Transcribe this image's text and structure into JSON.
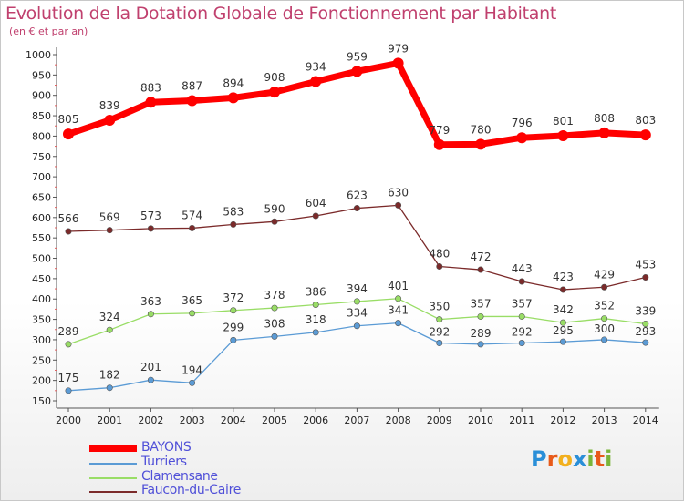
{
  "chart_data": {
    "type": "line",
    "title": "Evolution de la Dotation Globale de Fonctionnement par Habitant",
    "subtitle": "(en € et par an)",
    "x": [
      "2000",
      "2001",
      "2002",
      "2003",
      "2004",
      "2005",
      "2006",
      "2007",
      "2008",
      "2009",
      "2010",
      "2011",
      "2012",
      "2013",
      "2014"
    ],
    "ylim": [
      150,
      1000
    ],
    "yticks": [
      150,
      200,
      250,
      300,
      350,
      400,
      450,
      500,
      550,
      600,
      650,
      700,
      750,
      800,
      850,
      900,
      950,
      1000
    ],
    "grid": false,
    "legend_position": "bottom-left",
    "series": [
      {
        "name": "BAYONS",
        "color": "#ff0000",
        "values": [
          805,
          839,
          883,
          887,
          894,
          908,
          934,
          959,
          979,
          779,
          780,
          796,
          801,
          808,
          803
        ]
      },
      {
        "name": "Turriers",
        "color": "#5b9bd5",
        "values": [
          175,
          182,
          201,
          194,
          299,
          308,
          318,
          334,
          341,
          292,
          289,
          292,
          295,
          300,
          293
        ]
      },
      {
        "name": "Clamensane",
        "color": "#99dd66",
        "values": [
          289,
          324,
          363,
          365,
          372,
          378,
          386,
          394,
          401,
          350,
          357,
          357,
          342,
          352,
          339
        ]
      },
      {
        "name": "Faucon-du-Caire",
        "color": "#7b2a2a",
        "values": [
          566,
          569,
          573,
          574,
          583,
          590,
          604,
          623,
          630,
          480,
          472,
          443,
          423,
          429,
          453
        ]
      }
    ]
  },
  "logo": {
    "letters": [
      "P",
      "r",
      "o",
      "x",
      "i",
      "t",
      "i"
    ],
    "colors": [
      "#2a8fd8",
      "#e85a1a",
      "#f2b01e",
      "#2a8fd8",
      "#7ab53a",
      "#e85a1a",
      "#7ab53a"
    ]
  }
}
